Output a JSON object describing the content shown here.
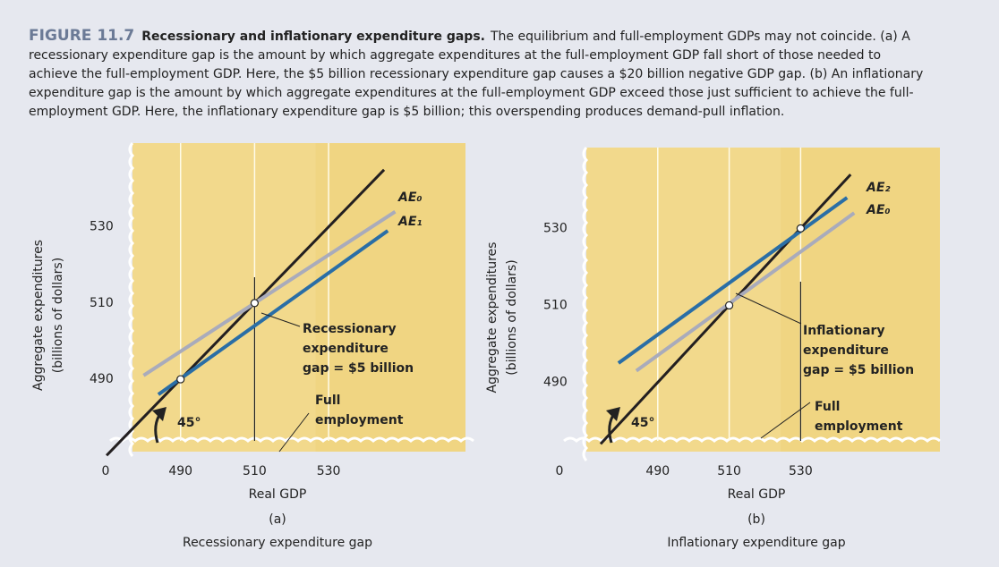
{
  "figure": {
    "label": "FIGURE 11.7",
    "title": "Recessionary and inflationary expenditure gaps.",
    "text": "The equilibrium and full-employment GDPs may not coincide. (a) A recessionary expenditure gap is the amount by which aggregate expenditures at the full-employment GDP fall short of those needed to achieve the full-employment GDP. Here, the $5 billion recessionary expenditure gap causes a $20 billion negative GDP gap. (b) An inflationary expenditure gap is the amount by which aggregate expenditures at the full-employment GDP exceed those just sufficient to achieve the full-employment GDP. Here, the inflationary expenditure gap is $5 billion; this overspending produces demand-pull inflation."
  },
  "chart_data": [
    {
      "type": "line",
      "panel_label": "(a)",
      "title": "Recessionary expenditure gap",
      "x_label": "Real GDP",
      "y_label": [
        "Aggregate expenditures",
        "(billions of dollars)"
      ],
      "origin": 0,
      "angle_label": "45°",
      "xlim": [
        477,
        567
      ],
      "ylim": [
        471,
        552
      ],
      "xticks": [
        490,
        510,
        530
      ],
      "yticks": [
        490,
        510,
        530
      ],
      "series": [
        {
          "color": "#231f20",
          "x": [
            470,
            545
          ],
          "values": [
            470,
            545
          ]
        },
        {
          "name": "AE₀",
          "color": "#a9abbb",
          "x": [
            480,
            548
          ],
          "values": [
            491,
            534
          ]
        },
        {
          "name": "AE₁",
          "color": "#2a6ea6",
          "x": [
            484,
            546
          ],
          "values": [
            486,
            529
          ]
        }
      ],
      "points": {
        "x": [
          490,
          510
        ],
        "y": [
          490,
          510
        ]
      },
      "full_employment": 510,
      "gap_annotation": [
        "Recessionary",
        "expenditure",
        "gap = $5 billion"
      ],
      "fe_annotation": [
        "Full",
        "employment"
      ]
    },
    {
      "type": "line",
      "panel_label": "(b)",
      "title": "Inflationary expenditure gap",
      "x_label": "Real GDP",
      "y_label": [
        "Aggregate expenditures",
        "(billions of dollars)"
      ],
      "origin": 0,
      "angle_label": "45°",
      "xlim": [
        470,
        569
      ],
      "ylim": [
        472,
        551
      ],
      "xticks": [
        490,
        510,
        530
      ],
      "yticks": [
        490,
        510,
        530
      ],
      "series": [
        {
          "color": "#231f20",
          "x": [
            474,
            544
          ],
          "values": [
            474,
            544
          ]
        },
        {
          "name": "AE₂",
          "color": "#2a6ea6",
          "x": [
            479,
            543
          ],
          "values": [
            495,
            538
          ]
        },
        {
          "name": "AE₀",
          "color": "#a9abbb",
          "x": [
            484,
            545
          ],
          "values": [
            493,
            534
          ]
        }
      ],
      "points": {
        "x": [
          510,
          530
        ],
        "y": [
          510,
          530
        ]
      },
      "full_employment": 530,
      "gap_annotation": [
        "Inflationary",
        "expenditure",
        "gap = $5 billion"
      ],
      "fe_annotation": [
        "Full",
        "employment"
      ]
    }
  ]
}
